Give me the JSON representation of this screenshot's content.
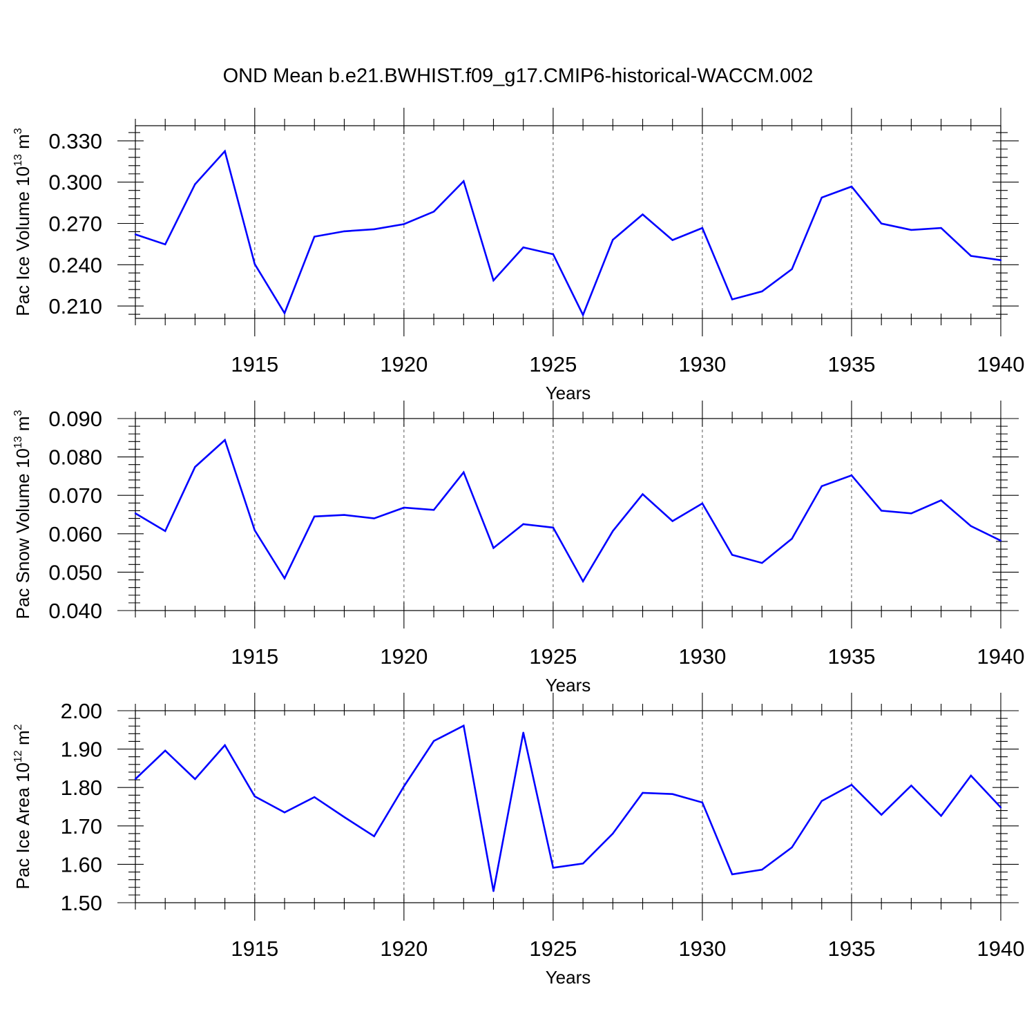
{
  "title": "OND Mean b.e21.BWHIST.f09_g17.CMIP6-historical-WACCM.002",
  "line_color": "#0000ff",
  "chart_data": [
    {
      "type": "line",
      "ylabel": "Pac Ice Volume 10",
      "ylabel_exp": "13",
      "ylabel_unit": " m",
      "ylabel_unit_exp": "3",
      "xlabel": "Years",
      "xlim": [
        1911,
        1940
      ],
      "ylim": [
        0.201,
        0.341
      ],
      "yticks": [
        0.21,
        0.24,
        0.27,
        0.3,
        0.33
      ],
      "ytick_labels": [
        "0.210",
        "0.240",
        "0.270",
        "0.300",
        "0.330"
      ],
      "xticks": [
        1915,
        1920,
        1925,
        1930,
        1935,
        1940
      ],
      "xtick_labels": [
        "1915",
        "1920",
        "1925",
        "1930",
        "1935",
        "1940"
      ],
      "grid": "dashed vertical lines at major x ticks",
      "x": [
        1911,
        1912,
        1913,
        1914,
        1915,
        1916,
        1917,
        1918,
        1919,
        1920,
        1921,
        1922,
        1923,
        1924,
        1925,
        1926,
        1927,
        1928,
        1929,
        1930,
        1931,
        1932,
        1933,
        1934,
        1935,
        1936,
        1937,
        1938,
        1939,
        1940
      ],
      "y": [
        0.262,
        0.2548,
        0.2985,
        0.3225,
        0.2405,
        0.2048,
        0.2604,
        0.2643,
        0.2658,
        0.2695,
        0.2786,
        0.3007,
        0.2286,
        0.2526,
        0.2476,
        0.2035,
        0.2581,
        0.2765,
        0.2579,
        0.2667,
        0.2148,
        0.2206,
        0.2368,
        0.2888,
        0.2968,
        0.2699,
        0.2653,
        0.2667,
        0.2464,
        0.2433
      ]
    },
    {
      "type": "line",
      "ylabel": "Pac Snow Volume 10",
      "ylabel_exp": "13",
      "ylabel_unit": " m",
      "ylabel_unit_exp": "3",
      "xlabel": "Years",
      "xlim": [
        1911,
        1940
      ],
      "ylim": [
        0.04,
        0.09
      ],
      "yticks": [
        0.04,
        0.05,
        0.06,
        0.07,
        0.08,
        0.09
      ],
      "ytick_labels": [
        "0.040",
        "0.050",
        "0.060",
        "0.070",
        "0.080",
        "0.090"
      ],
      "xticks": [
        1915,
        1920,
        1925,
        1930,
        1935,
        1940
      ],
      "xtick_labels": [
        "1915",
        "1920",
        "1925",
        "1930",
        "1935",
        "1940"
      ],
      "grid": "dashed vertical lines at major x ticks",
      "x": [
        1911,
        1912,
        1913,
        1914,
        1915,
        1916,
        1917,
        1918,
        1919,
        1920,
        1921,
        1922,
        1923,
        1924,
        1925,
        1926,
        1927,
        1928,
        1929,
        1930,
        1931,
        1932,
        1933,
        1934,
        1935,
        1936,
        1937,
        1938,
        1939,
        1940
      ],
      "y": [
        0.0653,
        0.0607,
        0.0774,
        0.0844,
        0.0609,
        0.0484,
        0.0645,
        0.0649,
        0.064,
        0.0668,
        0.0662,
        0.076,
        0.0563,
        0.0625,
        0.0616,
        0.0476,
        0.0607,
        0.0703,
        0.0633,
        0.0679,
        0.0545,
        0.0524,
        0.0587,
        0.0724,
        0.0752,
        0.066,
        0.0653,
        0.0687,
        0.062,
        0.0582
      ]
    },
    {
      "type": "line",
      "ylabel": "Pac Ice Area 10",
      "ylabel_exp": "12",
      "ylabel_unit": " m",
      "ylabel_unit_exp": "2",
      "xlabel": "Years",
      "xlim": [
        1911,
        1940
      ],
      "ylim": [
        1.5,
        2.0
      ],
      "yticks": [
        1.5,
        1.6,
        1.7,
        1.8,
        1.9,
        2.0
      ],
      "ytick_labels": [
        "1.50",
        "1.60",
        "1.70",
        "1.80",
        "1.90",
        "2.00"
      ],
      "xticks": [
        1915,
        1920,
        1925,
        1930,
        1935,
        1940
      ],
      "xtick_labels": [
        "1915",
        "1920",
        "1925",
        "1930",
        "1935",
        "1940"
      ],
      "grid": "dashed vertical lines at major x ticks",
      "x": [
        1911,
        1912,
        1913,
        1914,
        1915,
        1916,
        1917,
        1918,
        1919,
        1920,
        1921,
        1922,
        1923,
        1924,
        1925,
        1926,
        1927,
        1928,
        1929,
        1930,
        1931,
        1932,
        1933,
        1934,
        1935,
        1936,
        1937,
        1938,
        1939,
        1940
      ],
      "y": [
        1.822,
        1.896,
        1.822,
        1.91,
        1.777,
        1.735,
        1.775,
        1.723,
        1.673,
        1.803,
        1.921,
        1.961,
        1.53,
        1.943,
        1.591,
        1.602,
        1.68,
        1.786,
        1.783,
        1.761,
        1.574,
        1.586,
        1.644,
        1.765,
        1.807,
        1.729,
        1.805,
        1.726,
        1.831,
        1.748
      ]
    }
  ]
}
